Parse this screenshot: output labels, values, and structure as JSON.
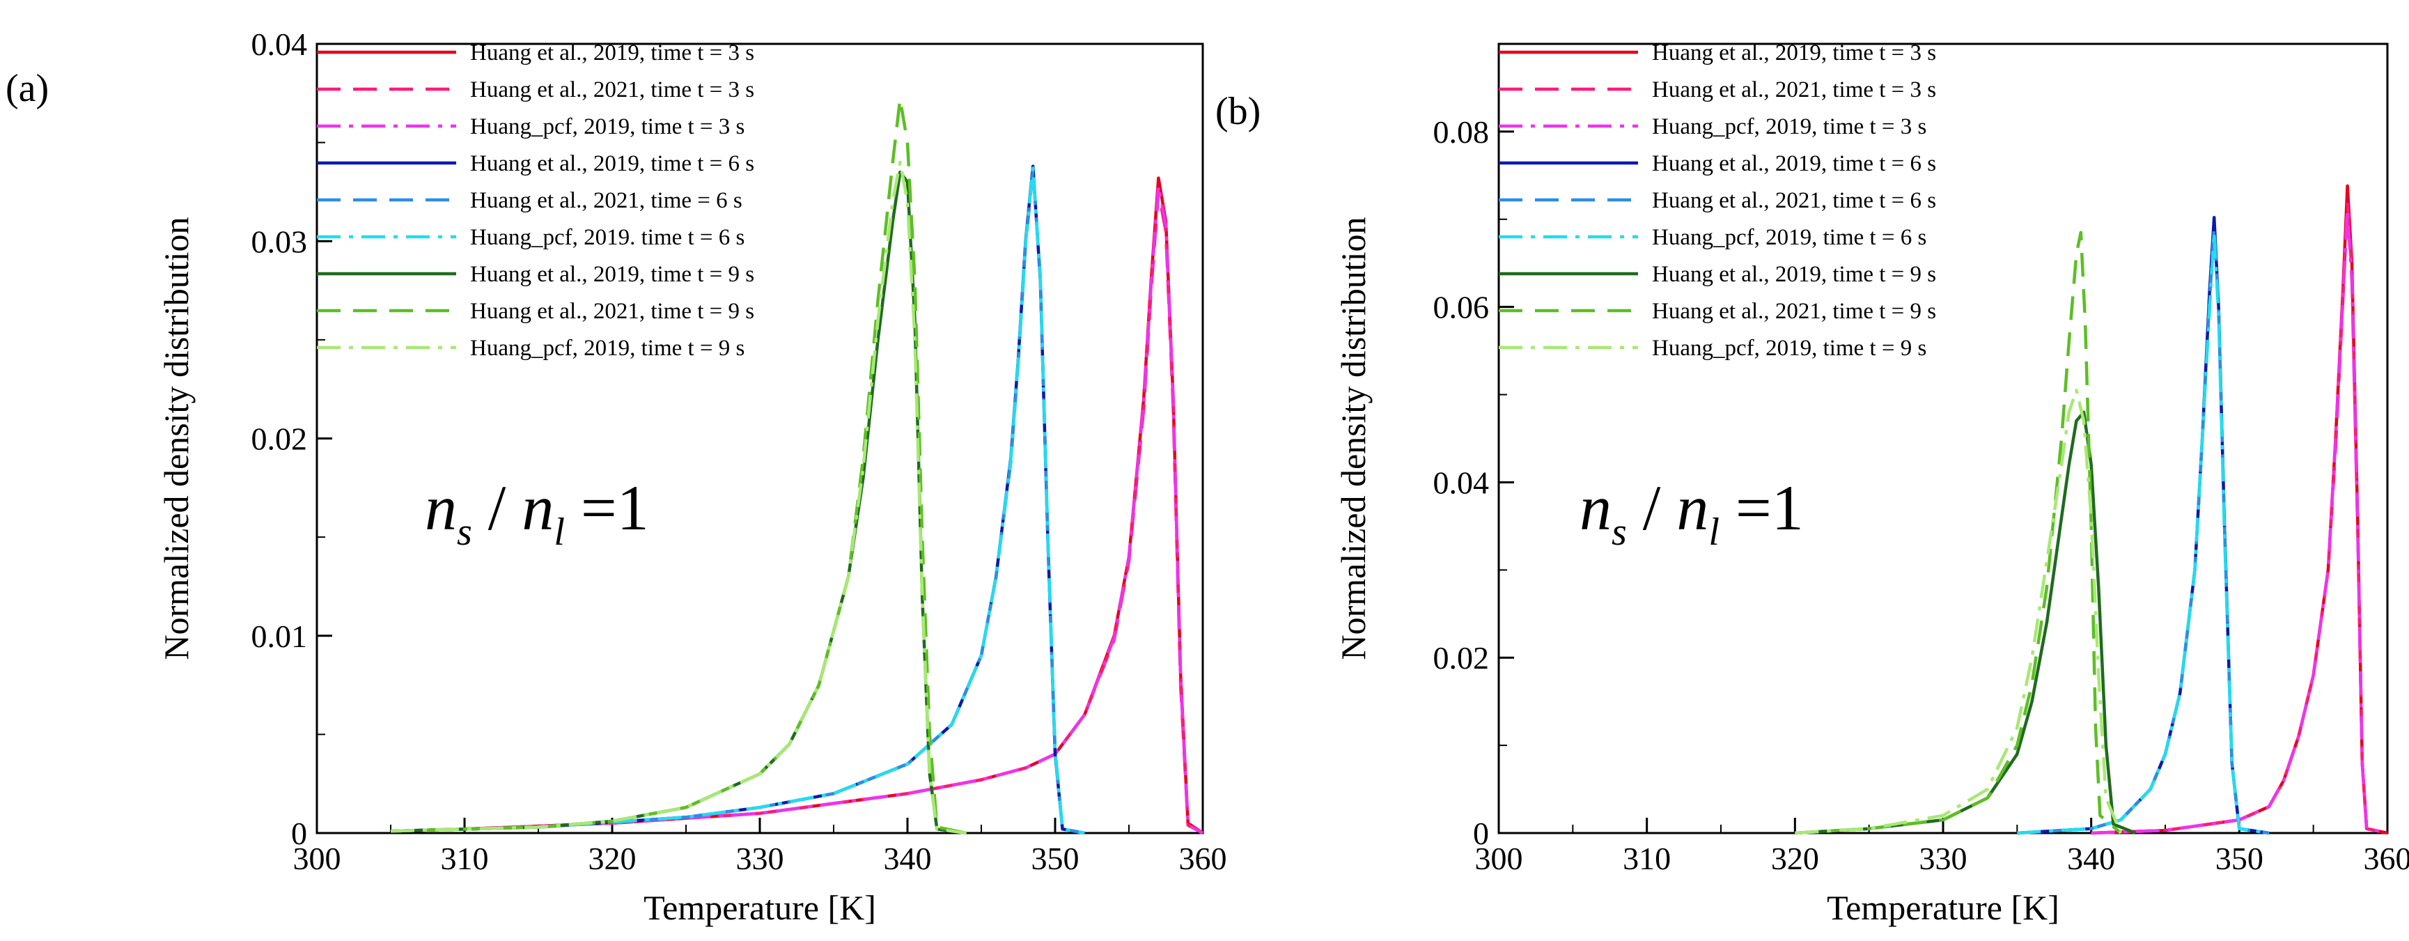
{
  "chart_data": [
    {
      "type": "line",
      "panel_label": "(a)",
      "annotation": {
        "n1": "n",
        "s1": "s",
        "slash": " / ",
        "n2": "n",
        "s2": "l",
        "tail": " =1"
      },
      "xlabel": "Temperature [K]",
      "ylabel": "Normalized density distribution",
      "xlim": [
        300,
        360
      ],
      "ylim": [
        0,
        0.04
      ],
      "xticks": [
        300,
        310,
        320,
        330,
        340,
        350,
        360
      ],
      "yticks": [
        0,
        0.01,
        0.02,
        0.03,
        0.04
      ],
      "ytick_labels": [
        "0",
        "0.01",
        "0.02",
        "0.03",
        "0.04"
      ],
      "grid": false,
      "legend_position": "top-left",
      "series": [
        {
          "name": "Huang et al., 2019, time t = 3 s",
          "color": "#e8001c",
          "dash": "solid",
          "x": [
            310,
            320,
            330,
            335,
            340,
            345,
            348,
            350,
            352,
            354,
            355,
            356,
            356.5,
            357,
            357.5,
            358,
            358.5,
            359,
            360
          ],
          "y": [
            0.0002,
            0.0005,
            0.001,
            0.0015,
            0.002,
            0.0027,
            0.0033,
            0.004,
            0.006,
            0.01,
            0.014,
            0.022,
            0.028,
            0.0332,
            0.031,
            0.022,
            0.008,
            0.0005,
            0
          ]
        },
        {
          "name": "Huang et al., 2021, time t = 3 s",
          "color": "#ff1a7a",
          "dash": "dashed",
          "x": [
            310,
            320,
            330,
            335,
            340,
            345,
            348,
            350,
            352,
            354,
            355,
            356,
            356.5,
            357,
            357.5,
            358,
            358.5,
            359,
            360
          ],
          "y": [
            0.0002,
            0.0005,
            0.001,
            0.0015,
            0.002,
            0.0027,
            0.0033,
            0.004,
            0.006,
            0.0098,
            0.0138,
            0.0215,
            0.0275,
            0.0325,
            0.0305,
            0.0215,
            0.0075,
            0.0004,
            0
          ]
        },
        {
          "name": "Huang_pcf, 2019, time t = 3 s",
          "color": "#ee33ee",
          "dash": "dashdot",
          "x": [
            310,
            320,
            330,
            335,
            340,
            345,
            348,
            350,
            352,
            354,
            355,
            356,
            356.5,
            357,
            357.5,
            358,
            358.5,
            359,
            360
          ],
          "y": [
            0.0002,
            0.0005,
            0.001,
            0.0015,
            0.002,
            0.0027,
            0.0033,
            0.004,
            0.006,
            0.0099,
            0.014,
            0.0218,
            0.0278,
            0.0328,
            0.0308,
            0.0218,
            0.0078,
            0.0004,
            0
          ]
        },
        {
          "name": "Huang et al., 2019, time t = 6 s",
          "color": "#0a1ab0",
          "dash": "solid",
          "x": [
            305,
            315,
            325,
            330,
            335,
            340,
            343,
            345,
            346,
            347,
            347.5,
            348,
            348.5,
            349,
            349.5,
            350,
            350.5,
            352
          ],
          "y": [
            0.0001,
            0.0003,
            0.0008,
            0.0013,
            0.002,
            0.0035,
            0.0055,
            0.009,
            0.013,
            0.019,
            0.024,
            0.03,
            0.0338,
            0.028,
            0.015,
            0.004,
            0.0002,
            0
          ]
        },
        {
          "name": "Huang et al., 2021, time t = 6 s",
          "color": "#2a8ee6",
          "dash": "dashed",
          "x": [
            305,
            315,
            325,
            330,
            335,
            340,
            343,
            345,
            346,
            347,
            347.5,
            348,
            348.5,
            349,
            349.5,
            350,
            350.5,
            352
          ],
          "y": [
            0.0001,
            0.0003,
            0.0008,
            0.0013,
            0.002,
            0.0035,
            0.0055,
            0.009,
            0.013,
            0.0188,
            0.0238,
            0.0298,
            0.0336,
            0.0282,
            0.0152,
            0.0042,
            0.0002,
            0
          ]
        },
        {
          "name": "Huang_pcf, 2019, time t = 6 s",
          "color": "#22dcef",
          "dash": "dashdot",
          "x": [
            305,
            315,
            325,
            330,
            335,
            340,
            343,
            345,
            346,
            347,
            347.5,
            348,
            348.5,
            349,
            349.5,
            350,
            350.5,
            352
          ],
          "y": [
            0.0001,
            0.0003,
            0.0008,
            0.0013,
            0.002,
            0.0035,
            0.0055,
            0.009,
            0.013,
            0.0189,
            0.0239,
            0.0299,
            0.0337,
            0.0281,
            0.0151,
            0.0041,
            0.0002,
            0
          ]
        },
        {
          "name": "Huang et al., 2019, time t = 9 s",
          "color": "#1f6b1f",
          "dash": "solid",
          "x": [
            305,
            315,
            320,
            325,
            330,
            332,
            334,
            336,
            337,
            338,
            339,
            339.5,
            340,
            340.5,
            341,
            341.5,
            342,
            344
          ],
          "y": [
            0.0001,
            0.0003,
            0.0006,
            0.0013,
            0.003,
            0.0045,
            0.0075,
            0.013,
            0.018,
            0.025,
            0.031,
            0.0335,
            0.033,
            0.026,
            0.012,
            0.003,
            0.0002,
            0
          ]
        },
        {
          "name": "Huang et al., 2021, time t = 9 s",
          "color": "#5cbf23",
          "dash": "dashed",
          "x": [
            305,
            315,
            320,
            325,
            330,
            332,
            334,
            336,
            337,
            338,
            339,
            339.5,
            340,
            340.5,
            341,
            341.5,
            342,
            344
          ],
          "y": [
            0.0001,
            0.0003,
            0.0006,
            0.0013,
            0.003,
            0.0045,
            0.0075,
            0.013,
            0.019,
            0.027,
            0.034,
            0.0372,
            0.035,
            0.028,
            0.015,
            0.005,
            0.0003,
            0
          ]
        },
        {
          "name": "Huang_pcf, 2019, time t = 9 s",
          "color": "#a8e875",
          "dash": "dashdot",
          "x": [
            305,
            315,
            320,
            325,
            330,
            332,
            334,
            336,
            337,
            338,
            339,
            339.5,
            340,
            340.5,
            341,
            341.5,
            342,
            344
          ],
          "y": [
            0.0001,
            0.0003,
            0.0006,
            0.0013,
            0.003,
            0.0045,
            0.0075,
            0.013,
            0.0185,
            0.026,
            0.032,
            0.034,
            0.032,
            0.025,
            0.012,
            0.003,
            0.0002,
            0
          ]
        }
      ]
    },
    {
      "type": "line",
      "panel_label": "(b)",
      "annotation": {
        "n1": "n",
        "s1": "s",
        "slash": " / ",
        "n2": "n",
        "s2": "l",
        "tail": " =1"
      },
      "xlabel": "Temperature [K]",
      "ylabel": "Normalized density distribution",
      "xlim": [
        300,
        360
      ],
      "ylim": [
        0,
        0.09
      ],
      "xticks": [
        300,
        310,
        320,
        330,
        340,
        350,
        360
      ],
      "yticks": [
        0,
        0.02,
        0.04,
        0.06,
        0.08
      ],
      "ytick_labels": [
        "0",
        "0.02",
        "0.04",
        "0.06",
        "0.08"
      ],
      "grid": false,
      "legend_position": "top-left",
      "series": [
        {
          "name": "Huang et al., 2019, time t = 3 s",
          "color": "#e8001c",
          "dash": "solid",
          "x": [
            340,
            345,
            350,
            352,
            353,
            354,
            355,
            356,
            356.5,
            357,
            357.3,
            357.6,
            358,
            358.3,
            358.6,
            360
          ],
          "y": [
            0,
            0.0003,
            0.0015,
            0.003,
            0.006,
            0.011,
            0.018,
            0.03,
            0.045,
            0.062,
            0.0738,
            0.065,
            0.035,
            0.008,
            0.0005,
            0
          ]
        },
        {
          "name": "Huang et al., 2021, time t = 3 s",
          "color": "#ff1a7a",
          "dash": "dashed",
          "x": [
            340,
            345,
            350,
            352,
            353,
            354,
            355,
            356,
            356.5,
            357,
            357.3,
            357.6,
            358,
            358.3,
            358.6,
            360
          ],
          "y": [
            0,
            0.0003,
            0.0015,
            0.003,
            0.006,
            0.011,
            0.018,
            0.03,
            0.044,
            0.061,
            0.072,
            0.064,
            0.034,
            0.008,
            0.0005,
            0
          ]
        },
        {
          "name": "Huang_pcf, 2019, time t = 3 s",
          "color": "#ee33ee",
          "dash": "dashdot",
          "x": [
            340,
            345,
            350,
            352,
            353,
            354,
            355,
            356,
            356.5,
            357,
            357.3,
            357.6,
            358,
            358.3,
            358.6,
            360
          ],
          "y": [
            0,
            0.0003,
            0.0015,
            0.003,
            0.006,
            0.011,
            0.018,
            0.03,
            0.045,
            0.061,
            0.071,
            0.063,
            0.034,
            0.008,
            0.0005,
            0
          ]
        },
        {
          "name": "Huang et al., 2019, time t = 6 s",
          "color": "#0a1ab0",
          "dash": "solid",
          "x": [
            335,
            340,
            342,
            344,
            345,
            346,
            347,
            347.5,
            348,
            348.3,
            348.6,
            349,
            349.5,
            350,
            352
          ],
          "y": [
            0,
            0.0005,
            0.0015,
            0.005,
            0.009,
            0.016,
            0.03,
            0.045,
            0.062,
            0.0702,
            0.06,
            0.035,
            0.008,
            0.0005,
            0
          ]
        },
        {
          "name": "Huang et al., 2021, time t = 6 s",
          "color": "#2a8ee6",
          "dash": "dashed",
          "x": [
            335,
            340,
            342,
            344,
            345,
            346,
            347,
            347.5,
            348,
            348.3,
            348.6,
            349,
            349.5,
            350,
            352
          ],
          "y": [
            0,
            0.0005,
            0.0015,
            0.005,
            0.009,
            0.016,
            0.03,
            0.045,
            0.061,
            0.069,
            0.06,
            0.035,
            0.008,
            0.0005,
            0
          ]
        },
        {
          "name": "Huang_pcf, 2019, time t = 6 s",
          "color": "#22dcef",
          "dash": "dashdot",
          "x": [
            335,
            340,
            342,
            344,
            345,
            346,
            347,
            347.5,
            348,
            348.3,
            348.6,
            349,
            349.5,
            350,
            352
          ],
          "y": [
            0,
            0.0005,
            0.0015,
            0.005,
            0.009,
            0.016,
            0.03,
            0.045,
            0.06,
            0.0685,
            0.059,
            0.034,
            0.008,
            0.0005,
            0
          ]
        },
        {
          "name": "Huang et al., 2019, time t = 9 s",
          "color": "#1f6b1f",
          "dash": "solid",
          "x": [
            320,
            325,
            330,
            333,
            335,
            336,
            337,
            338,
            338.5,
            339,
            339.5,
            340,
            340.5,
            341,
            341.5,
            343
          ],
          "y": [
            0,
            0.0005,
            0.0015,
            0.004,
            0.009,
            0.015,
            0.024,
            0.036,
            0.042,
            0.047,
            0.048,
            0.042,
            0.028,
            0.01,
            0.001,
            0
          ]
        },
        {
          "name": "Huang et al., 2021, time t = 9 s",
          "color": "#5cbf23",
          "dash": "dashed",
          "x": [
            320,
            325,
            330,
            333,
            335,
            336,
            337,
            338,
            338.5,
            339,
            339.3,
            339.6,
            340,
            340.3,
            340.6,
            342
          ],
          "y": [
            0,
            0.0005,
            0.0015,
            0.004,
            0.01,
            0.017,
            0.028,
            0.045,
            0.056,
            0.066,
            0.0685,
            0.058,
            0.035,
            0.012,
            0.002,
            0
          ]
        },
        {
          "name": "Huang_pcf, 2019, time t = 9 s",
          "color": "#a8e875",
          "dash": "dashdot",
          "x": [
            320,
            325,
            330,
            333,
            335,
            336,
            337,
            338,
            338.5,
            339,
            339.5,
            340,
            340.5,
            341,
            342
          ],
          "y": [
            0,
            0.0005,
            0.002,
            0.005,
            0.012,
            0.02,
            0.031,
            0.042,
            0.048,
            0.0505,
            0.047,
            0.036,
            0.018,
            0.004,
            0
          ]
        }
      ]
    }
  ],
  "legend_labels": [
    [
      "Huang et al., 2019, time t = 3 s",
      "Huang et al., 2021, time t = 3 s",
      "Huang_pcf, 2019, time t = 3 s",
      "Huang et al., 2019, time t = 6 s",
      "Huang et al., 2021, time  = 6 s",
      "Huang_pcf, 2019. time t = 6 s",
      "Huang et al., 2019, time t = 9 s",
      "Huang et al., 2021, time t = 9 s",
      "Huang_pcf, 2019, time t = 9 s"
    ],
    [
      "Huang et al., 2019, time t = 3 s",
      "Huang et al., 2021, time t = 3 s",
      "Huang_pcf, 2019, time t = 3 s",
      "Huang et al., 2019, time t = 6 s",
      "Huang et al., 2021, time t = 6 s",
      "Huang_pcf, 2019, time t = 6 s",
      "Huang et al., 2019, time t = 9 s",
      "Huang et al., 2021, time t = 9 s",
      "Huang_pcf, 2019, time t = 9 s"
    ]
  ]
}
